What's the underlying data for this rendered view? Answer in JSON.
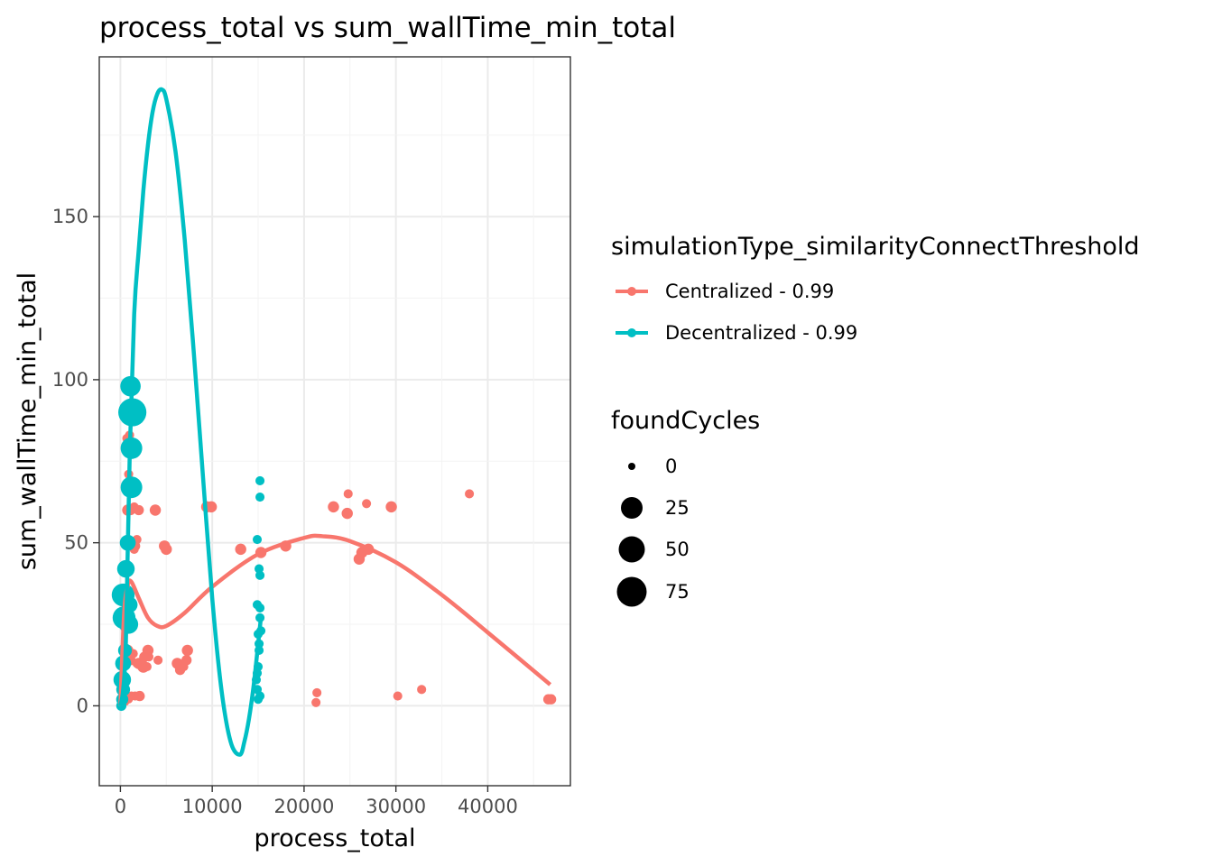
{
  "chart_data": {
    "type": "scatter",
    "title": "process_total  vs  sum_wallTime_min_total",
    "xlabel": "process_total",
    "ylabel": "sum_wallTime_min_total",
    "xlim": [
      -2300,
      49000
    ],
    "ylim": [
      -24.5,
      199
    ],
    "xticks": [
      0,
      10000,
      20000,
      30000,
      40000
    ],
    "xtick_labels": [
      "0",
      "10000",
      "20000",
      "30000",
      "40000"
    ],
    "yticks": [
      0,
      50,
      100,
      150
    ],
    "ytick_labels": [
      "0",
      "50",
      "100",
      "150"
    ],
    "grid": true,
    "legend_position": "right",
    "colour_legend": {
      "title": "simulationType_similarityConnectThreshold",
      "entries": [
        "Centralized - 0.99",
        "Decentralized - 0.99"
      ]
    },
    "size_legend": {
      "title": "foundCycles",
      "entries": [
        {
          "label": "0",
          "value": 0
        },
        {
          "label": "25",
          "value": 25
        },
        {
          "label": "50",
          "value": 50
        },
        {
          "label": "75",
          "value": 75
        }
      ]
    },
    "series": [
      {
        "name": "Centralized - 0.99",
        "color": "#F8766D",
        "points": [
          [
            300,
            0,
            0
          ],
          [
            600,
            1,
            0
          ],
          [
            900,
            2,
            3
          ],
          [
            1200,
            3,
            4
          ],
          [
            1600,
            3,
            4
          ],
          [
            2100,
            3,
            6
          ],
          [
            400,
            13,
            4
          ],
          [
            800,
            17,
            8
          ],
          [
            1100,
            14,
            6
          ],
          [
            1400,
            16,
            4
          ],
          [
            2000,
            13,
            8
          ],
          [
            2500,
            12,
            10
          ],
          [
            3000,
            17,
            8
          ],
          [
            2600,
            15,
            6
          ],
          [
            1800,
            13,
            4
          ],
          [
            3100,
            15,
            4
          ],
          [
            4100,
            14,
            4
          ],
          [
            2900,
            12,
            4
          ],
          [
            6200,
            13,
            8
          ],
          [
            6500,
            11,
            6
          ],
          [
            6900,
            12,
            4
          ],
          [
            7200,
            14,
            6
          ],
          [
            7300,
            17,
            8
          ],
          [
            800,
            60,
            8
          ],
          [
            1100,
            60,
            6
          ],
          [
            1500,
            61,
            4
          ],
          [
            2000,
            60,
            6
          ],
          [
            3800,
            60,
            8
          ],
          [
            1200,
            67,
            4
          ],
          [
            900,
            71,
            4
          ],
          [
            700,
            82,
            4
          ],
          [
            1000,
            83,
            4
          ],
          [
            1500,
            48,
            4
          ],
          [
            1800,
            51,
            4
          ],
          [
            1600,
            49,
            6
          ],
          [
            4800,
            49,
            8
          ],
          [
            5000,
            48,
            8
          ],
          [
            9400,
            61,
            8
          ],
          [
            9900,
            61,
            8
          ],
          [
            13100,
            48,
            8
          ],
          [
            15300,
            47,
            8
          ],
          [
            18000,
            49,
            8
          ],
          [
            23200,
            61,
            8
          ],
          [
            24700,
            59,
            8
          ],
          [
            24800,
            65,
            4
          ],
          [
            26000,
            45,
            8
          ],
          [
            26300,
            47,
            8
          ],
          [
            27000,
            48,
            8
          ],
          [
            26800,
            62,
            4
          ],
          [
            29500,
            61,
            8
          ],
          [
            38000,
            65,
            4
          ],
          [
            21300,
            1,
            4
          ],
          [
            21400,
            4,
            4
          ],
          [
            30200,
            3,
            4
          ],
          [
            32800,
            5,
            4
          ],
          [
            46600,
            2,
            6
          ],
          [
            46900,
            2,
            6
          ]
        ],
        "fit": [
          [
            0,
            0
          ],
          [
            400,
            28
          ],
          [
            800,
            37
          ],
          [
            1200,
            38
          ],
          [
            2000,
            33
          ],
          [
            3000,
            27
          ],
          [
            4000,
            24.5
          ],
          [
            5000,
            24.5
          ],
          [
            7000,
            28.5
          ],
          [
            10000,
            36.5
          ],
          [
            15000,
            46.5
          ],
          [
            20000,
            51.5
          ],
          [
            22000,
            52
          ],
          [
            25000,
            50.5
          ],
          [
            30000,
            44
          ],
          [
            35000,
            34
          ],
          [
            40000,
            22.5
          ],
          [
            46800,
            6.5
          ]
        ]
      },
      {
        "name": "Decentralized - 0.99",
        "color": "#00BFC4",
        "points": [
          [
            100,
            0,
            6
          ],
          [
            200,
            2,
            10
          ],
          [
            300,
            5,
            14
          ],
          [
            200,
            8,
            25
          ],
          [
            300,
            13,
            20
          ],
          [
            500,
            17,
            14
          ],
          [
            400,
            27,
            45
          ],
          [
            900,
            25,
            30
          ],
          [
            1000,
            31,
            20
          ],
          [
            300,
            34,
            45
          ],
          [
            600,
            42,
            25
          ],
          [
            800,
            50,
            20
          ],
          [
            1200,
            67,
            40
          ],
          [
            1200,
            79,
            40
          ],
          [
            1300,
            90,
            70
          ],
          [
            1100,
            98,
            35
          ],
          [
            14800,
            8,
            4
          ],
          [
            14900,
            5,
            4
          ],
          [
            15000,
            2,
            4
          ],
          [
            15200,
            3,
            4
          ],
          [
            15000,
            12,
            4
          ],
          [
            15100,
            17,
            4
          ],
          [
            15000,
            22,
            4
          ],
          [
            15200,
            27,
            4
          ],
          [
            14900,
            31,
            4
          ],
          [
            15200,
            30,
            4
          ],
          [
            15200,
            40,
            4
          ],
          [
            15100,
            42,
            4
          ],
          [
            14900,
            51,
            4
          ],
          [
            15200,
            64,
            4
          ],
          [
            15200,
            69,
            4
          ],
          [
            15300,
            23,
            4
          ],
          [
            15100,
            19,
            4
          ],
          [
            14900,
            10,
            4
          ]
        ],
        "fit": [
          [
            0,
            0
          ],
          [
            300,
            5
          ],
          [
            600,
            20
          ],
          [
            1000,
            75
          ],
          [
            1500,
            120
          ],
          [
            2000,
            140
          ],
          [
            2500,
            158
          ],
          [
            3000,
            172
          ],
          [
            3500,
            182
          ],
          [
            4000,
            187.5
          ],
          [
            4500,
            189
          ],
          [
            5000,
            186
          ],
          [
            6000,
            170
          ],
          [
            7000,
            143
          ],
          [
            8000,
            108
          ],
          [
            9000,
            70
          ],
          [
            10000,
            33
          ],
          [
            11000,
            5
          ],
          [
            12000,
            -11
          ],
          [
            13000,
            -15
          ],
          [
            13500,
            -11
          ],
          [
            14000,
            -4
          ],
          [
            14500,
            6
          ],
          [
            15000,
            19
          ],
          [
            15300,
            27
          ]
        ]
      }
    ]
  }
}
